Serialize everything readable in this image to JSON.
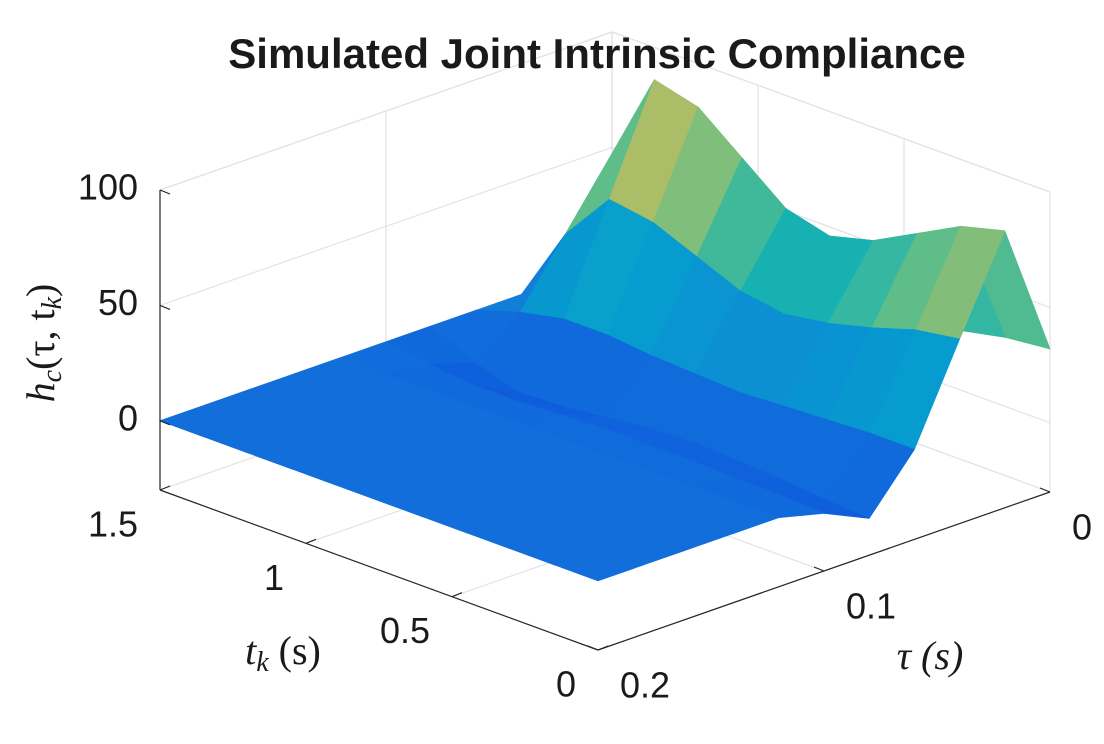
{
  "chart_data": {
    "type": "surface",
    "title": "Simulated Joint Intrinsic Compliance",
    "xlabel": [
      "τ (s)"
    ],
    "ylabel": [
      "t",
      "k",
      " (s)"
    ],
    "zlabel": [
      "h",
      "c",
      "(τ, t",
      "k",
      ")"
    ],
    "x": [
      0,
      0.02,
      0.04,
      0.06,
      0.08,
      0.1,
      0.12,
      0.14,
      0.16,
      0.18,
      0.2
    ],
    "y": [
      0,
      0.15,
      0.3,
      0.45,
      0.6,
      0.75,
      0.9,
      1.05,
      1.2,
      1.35,
      1.5
    ],
    "z": [
      [
        32,
        90,
        50,
        9,
        -14,
        -5,
        0,
        0,
        0,
        0,
        0
      ],
      [
        30,
        85,
        47,
        9,
        -13,
        -4,
        0,
        0,
        0,
        0,
        0
      ],
      [
        26,
        75,
        41,
        8,
        -11,
        -4,
        0,
        0,
        0,
        0,
        0
      ],
      [
        23,
        65,
        36,
        7,
        -10,
        -3,
        0,
        0,
        0,
        0,
        0
      ],
      [
        21,
        60,
        33,
        6,
        -9,
        -3,
        0,
        0,
        0,
        0,
        0
      ],
      [
        23,
        65,
        36,
        7,
        -10,
        -3,
        0,
        0,
        0,
        0,
        0
      ],
      [
        28,
        80,
        44,
        8,
        -12,
        -4,
        0,
        0,
        0,
        0,
        0
      ],
      [
        33,
        95,
        52,
        10,
        -14,
        -5,
        0,
        0,
        0,
        0,
        0
      ],
      [
        35,
        100,
        55,
        10,
        -15,
        -5,
        0,
        0,
        0,
        0,
        0
      ],
      [
        21,
        60,
        33,
        6,
        -9,
        -3,
        0,
        0,
        0,
        0,
        0
      ],
      [
        0,
        0,
        0,
        0,
        0,
        0,
        0,
        0,
        0,
        0,
        0
      ]
    ],
    "xlim": [
      0.2,
      0
    ],
    "ylim": [
      0,
      1.5
    ],
    "zlim": [
      -30,
      100
    ],
    "xticks": [
      0,
      0.1,
      0.2
    ],
    "yticks": [
      0,
      0.5,
      1,
      1.5
    ],
    "zticks": [
      0,
      50,
      100
    ],
    "grid": true,
    "colormap": "parula"
  }
}
